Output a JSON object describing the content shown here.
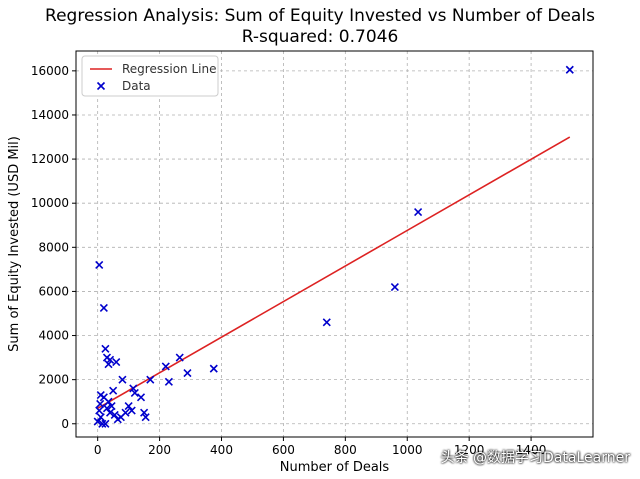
{
  "chart_data": {
    "type": "scatter",
    "title_line_1": "Regression Analysis: Sum of Equity Invested vs Number of Deals",
    "title_line_2": "R-squared: 0.7046",
    "xlabel": "Number of Deals",
    "ylabel": "Sum of Equity Invested (USD Mil)",
    "xlim": [
      -70,
      1600
    ],
    "ylim": [
      -600,
      16900
    ],
    "xticks": [
      0,
      200,
      400,
      600,
      800,
      1000,
      1200,
      1400
    ],
    "yticks": [
      0,
      2000,
      4000,
      6000,
      8000,
      10000,
      12000,
      14000,
      16000
    ],
    "grid": true,
    "legend_position": "top-left",
    "series": [
      {
        "name": "Data",
        "marker": "x",
        "color": "#0000cc",
        "points": [
          [
            5,
            7200
          ],
          [
            20,
            5250
          ],
          [
            25,
            3400
          ],
          [
            30,
            3000
          ],
          [
            35,
            2700
          ],
          [
            40,
            2900
          ],
          [
            60,
            2800
          ],
          [
            80,
            2000
          ],
          [
            50,
            1500
          ],
          [
            10,
            1300
          ],
          [
            20,
            1200
          ],
          [
            0,
            100
          ],
          [
            5,
            600
          ],
          [
            10,
            300
          ],
          [
            15,
            0
          ],
          [
            25,
            0
          ],
          [
            30,
            700
          ],
          [
            40,
            500
          ],
          [
            55,
            400
          ],
          [
            65,
            200
          ],
          [
            75,
            300
          ],
          [
            90,
            500
          ],
          [
            100,
            800
          ],
          [
            110,
            600
          ],
          [
            115,
            1600
          ],
          [
            120,
            1400
          ],
          [
            140,
            1200
          ],
          [
            150,
            500
          ],
          [
            155,
            300
          ],
          [
            170,
            2000
          ],
          [
            220,
            2600
          ],
          [
            230,
            1900
          ],
          [
            265,
            3000
          ],
          [
            290,
            2300
          ],
          [
            375,
            2500
          ],
          [
            740,
            4600
          ],
          [
            960,
            6200
          ],
          [
            1035,
            9600
          ],
          [
            1525,
            16050
          ],
          [
            8,
            900
          ],
          [
            35,
            1000
          ],
          [
            45,
            800
          ]
        ]
      },
      {
        "name": "Regression Line",
        "type": "line",
        "color": "#dd2222",
        "points": [
          [
            0,
            700
          ],
          [
            1525,
            13000
          ]
        ]
      }
    ]
  },
  "watermark": "头条 @数据学习DataLearner"
}
